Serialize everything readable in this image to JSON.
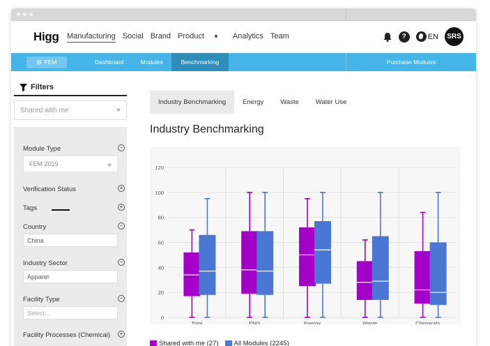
{
  "topnav": {
    "logo": "Higg",
    "links": [
      "Manufacturing",
      "Social",
      "Brand",
      "Product",
      "Analytics",
      "Team"
    ],
    "lang": "EN",
    "avatar": "SRS"
  },
  "subnav": {
    "fem_label": "FEM",
    "dashboard": "Dashboard",
    "modules": "Modules",
    "benchmarking": "Benchmarking",
    "purchase": "Purchase Modules"
  },
  "sidebar": {
    "title": "Filters",
    "shared_select": "Shared with me",
    "module_type": {
      "label": "Module Type",
      "value": "FEM 2019"
    },
    "verification_status": {
      "label": "Verification Status"
    },
    "tags": {
      "label": "Tags"
    },
    "country": {
      "label": "Country",
      "value": "China"
    },
    "industry_sector": {
      "label": "Industry Sector",
      "value": "Apparel"
    },
    "facility_type": {
      "label": "Facility Type",
      "placeholder": "Select..."
    },
    "facility_processes": {
      "label": "Facility Processes (Chemical)"
    },
    "icons": {
      "collapse": "minus-circle-icon",
      "expand": "plus-circle-icon"
    }
  },
  "main": {
    "tabs": [
      "Industry Benchmarking",
      "Energy",
      "Waste",
      "Water Use"
    ],
    "title": "Industry Benchmarking"
  },
  "colors": {
    "series1": "#a300c8",
    "series2": "#4a76d4",
    "accent": "#45b5e8"
  },
  "chart_data": {
    "type": "boxplot",
    "categories": [
      "Total",
      "EMS",
      "Energy",
      "Waste",
      "Chemicals"
    ],
    "ylim": [
      0,
      120
    ],
    "yticks": [
      "0",
      "20",
      "40",
      "60",
      "80",
      "100",
      "120"
    ],
    "grid": true,
    "legend_position": "bottom-left",
    "series": [
      {
        "name": "Shared with me (27)",
        "boxes": [
          {
            "min": 0,
            "q1": 17,
            "median": 34,
            "q3": 52,
            "max": 70
          },
          {
            "min": 0,
            "q1": 19,
            "median": 38,
            "q3": 69,
            "max": 100
          },
          {
            "min": 0,
            "q1": 25,
            "median": 50,
            "q3": 72,
            "max": 95
          },
          {
            "min": 0,
            "q1": 14,
            "median": 28,
            "q3": 45,
            "max": 62
          },
          {
            "min": 0,
            "q1": 11,
            "median": 22,
            "q3": 53,
            "max": 84
          }
        ]
      },
      {
        "name": "All Modules (2245)",
        "boxes": [
          {
            "min": 0,
            "q1": 18,
            "median": 37,
            "q3": 66,
            "max": 95
          },
          {
            "min": 0,
            "q1": 18,
            "median": 37,
            "q3": 69,
            "max": 100
          },
          {
            "min": 0,
            "q1": 27,
            "median": 54,
            "q3": 77,
            "max": 100
          },
          {
            "min": 0,
            "q1": 14,
            "median": 29,
            "q3": 65,
            "max": 100
          },
          {
            "min": 0,
            "q1": 10,
            "median": 20,
            "q3": 60,
            "max": 100
          }
        ]
      }
    ]
  }
}
